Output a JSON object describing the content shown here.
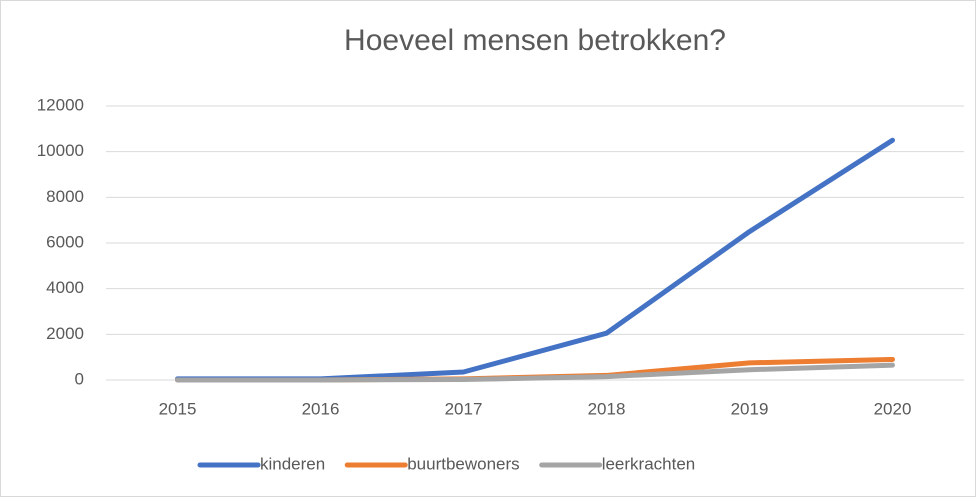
{
  "chart_data": {
    "type": "line",
    "title": "Hoeveel mensen betrokken?",
    "categories": [
      "2015",
      "2016",
      "2017",
      "2018",
      "2019",
      "2020"
    ],
    "series": [
      {
        "name": "kinderen",
        "color": "#4472c4",
        "values": [
          50,
          50,
          350,
          2050,
          6500,
          10500
        ]
      },
      {
        "name": "buurtbewoners",
        "color": "#ed7d31",
        "values": [
          0,
          0,
          50,
          200,
          750,
          900
        ]
      },
      {
        "name": "leerkrachten",
        "color": "#a5a5a5",
        "values": [
          0,
          0,
          20,
          150,
          450,
          650
        ]
      }
    ],
    "ylim": [
      0,
      12000
    ],
    "yticks": [
      0,
      2000,
      4000,
      6000,
      8000,
      10000,
      12000
    ],
    "grid": true,
    "legend": "bottom"
  }
}
